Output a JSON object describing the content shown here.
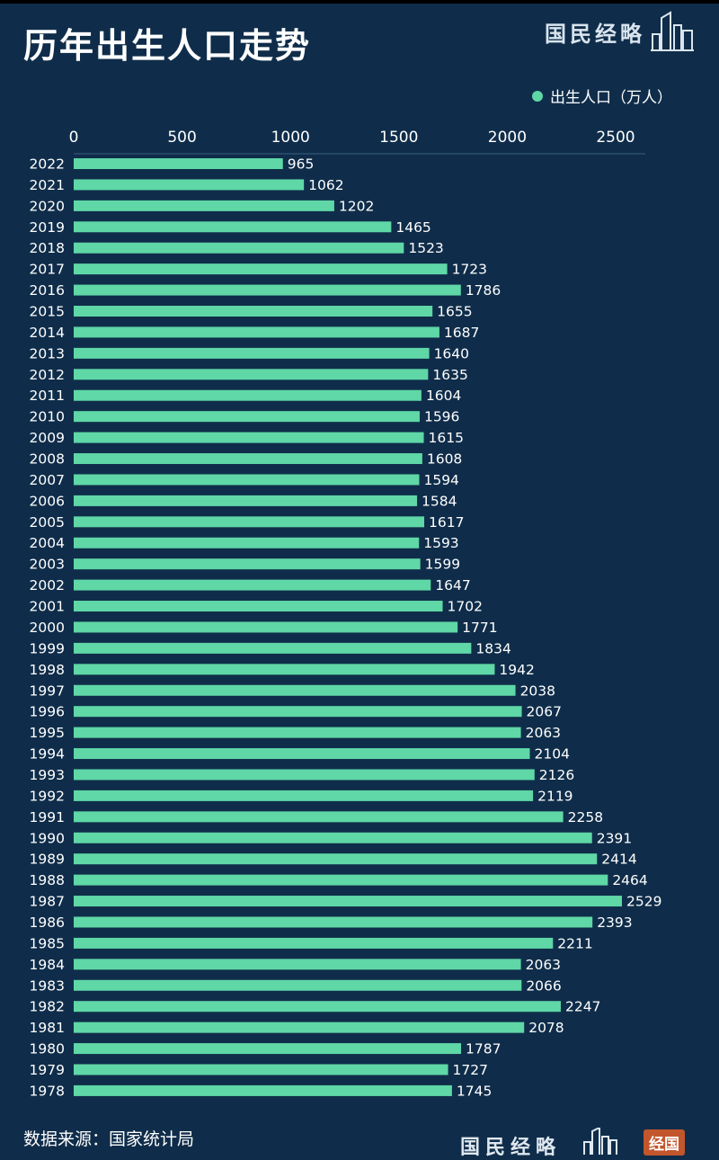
{
  "header": {
    "title": "历年出生人口走势",
    "brand": "国民经略"
  },
  "footer": {
    "source": "数据来源：国家统计局",
    "brand": "国民经略",
    "badge": "经国"
  },
  "colors": {
    "background": "#0f2d4a",
    "bar": "#5fd7a6",
    "text": "#ffffff"
  },
  "chart_data": {
    "type": "bar",
    "orientation": "horizontal",
    "title": "历年出生人口走势",
    "legend": "出生人口（万人）",
    "legend_position": "top-right",
    "xlim": [
      0,
      2600
    ],
    "x_ticks": [
      0,
      500,
      1000,
      1500,
      2000,
      2500
    ],
    "x_axis_position": "top",
    "grid": false,
    "categories": [
      "2022",
      "2021",
      "2020",
      "2019",
      "2018",
      "2017",
      "2016",
      "2015",
      "2014",
      "2013",
      "2012",
      "2011",
      "2010",
      "2009",
      "2008",
      "2007",
      "2006",
      "2005",
      "2004",
      "2003",
      "2002",
      "2001",
      "2000",
      "1999",
      "1998",
      "1997",
      "1996",
      "1995",
      "1994",
      "1993",
      "1992",
      "1991",
      "1990",
      "1989",
      "1988",
      "1987",
      "1986",
      "1985",
      "1984",
      "1983",
      "1982",
      "1981",
      "1980",
      "1979",
      "1978"
    ],
    "series": [
      {
        "name": "出生人口（万人）",
        "values": [
          965,
          1062,
          1202,
          1465,
          1523,
          1723,
          1786,
          1655,
          1687,
          1640,
          1635,
          1604,
          1596,
          1615,
          1608,
          1594,
          1584,
          1617,
          1593,
          1599,
          1647,
          1702,
          1771,
          1834,
          1942,
          2038,
          2067,
          2063,
          2104,
          2126,
          2119,
          2258,
          2391,
          2414,
          2464,
          2529,
          2393,
          2211,
          2063,
          2066,
          2247,
          2078,
          1787,
          1727,
          1745
        ]
      }
    ]
  }
}
